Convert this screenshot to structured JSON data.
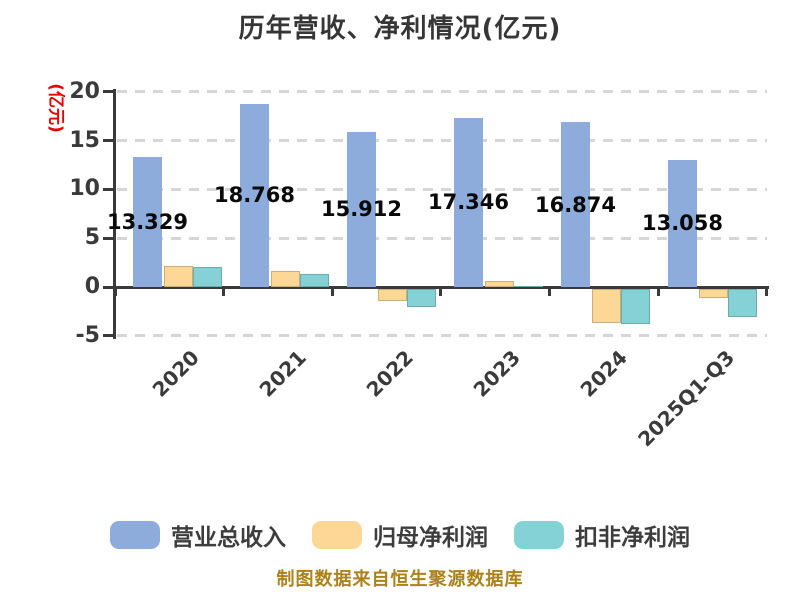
{
  "title": "历年营收、净利情况(亿元)",
  "footer": {
    "text": "制图数据来自恒生聚源数据库",
    "color": "#ab821b"
  },
  "chart_data": {
    "type": "bar",
    "title": "历年营收、净利情况(亿元)",
    "ylabel": "(亿元)",
    "ylabel_color": "#e60000",
    "categories": [
      "2020",
      "2021",
      "2022",
      "2023",
      "2024",
      "2025Q1-Q3"
    ],
    "yticks": [
      20,
      15,
      10,
      5,
      0,
      -5
    ],
    "ylim": [
      -5,
      20
    ],
    "grid": "horizontal dashed",
    "legend_position": "bottom",
    "series": [
      {
        "name": "营业总收入",
        "color": "#8dacdc",
        "values": [
          13.329,
          18.768,
          15.912,
          17.346,
          16.874,
          13.058
        ],
        "data_labels": [
          "13.329",
          "18.768",
          "15.912",
          "17.346",
          "16.874",
          "13.058"
        ]
      },
      {
        "name": "归母净利润",
        "color": "#fcd795",
        "values": [
          2.2,
          1.6,
          -1.3,
          0.6,
          -3.55,
          -0.95
        ],
        "estimated": true
      },
      {
        "name": "扣非净利润",
        "color": "#85d2d6",
        "values": [
          2.1,
          1.35,
          -1.9,
          0.15,
          -3.6,
          -2.95
        ],
        "estimated": true
      }
    ],
    "axis_color": "#3a3a3a",
    "grid_color": "#d6d6d6",
    "tick_label_color": "#3a3a3a",
    "value_label_color": "#0a0a0a"
  }
}
